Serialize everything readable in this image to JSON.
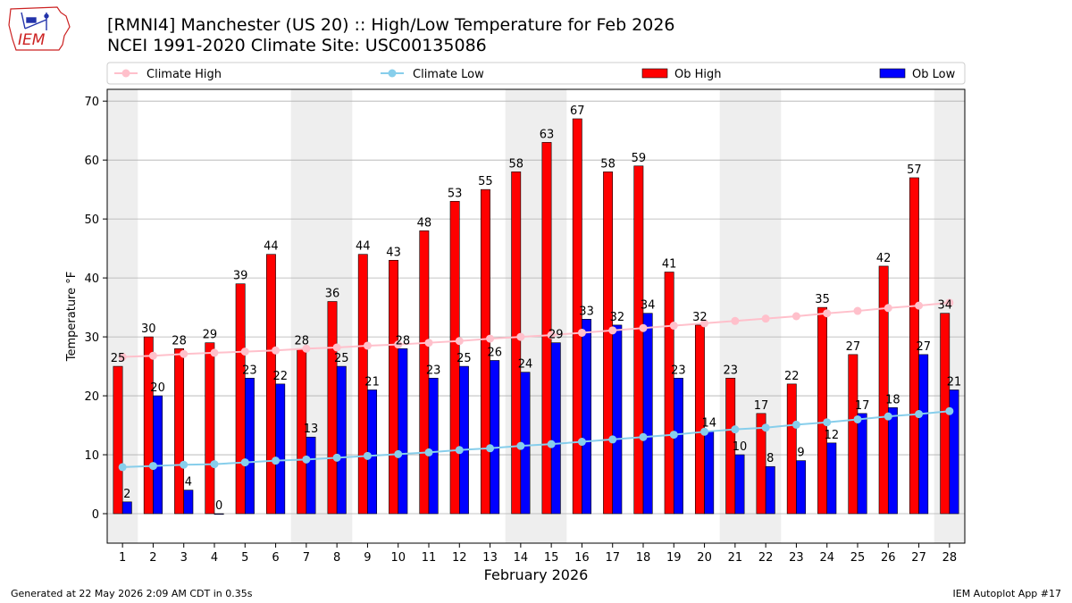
{
  "header": {
    "logo_text": "IEM",
    "title_line1": "[RMNI4] Manchester (US 20) :: High/Low Temperature for Feb 2026",
    "title_line2": "NCEI 1991-2020 Climate Site: USC00135086"
  },
  "footer": {
    "generated": "Generated at 22 May 2026 2:09 AM CDT in 0.35s",
    "app": "IEM Autoplot App #17"
  },
  "colors": {
    "ob_high": "#ff0000",
    "ob_low": "#0000ff",
    "climate_high": "#ffc0cb",
    "climate_low": "#87ceeb",
    "weekend_band": "#eeeeee",
    "grid": "#b0b0b0",
    "logo": "#cc2222"
  },
  "chart_data": {
    "type": "bar",
    "xlabel": "February 2026",
    "ylabel": "Temperature °F",
    "ylim": [
      -5,
      72
    ],
    "yticks": [
      0,
      10,
      20,
      30,
      40,
      50,
      60,
      70
    ],
    "grid": "horizontal",
    "legend_placement": "top",
    "categories": [
      1,
      2,
      3,
      4,
      5,
      6,
      7,
      8,
      9,
      10,
      11,
      12,
      13,
      14,
      15,
      16,
      17,
      18,
      19,
      20,
      21,
      22,
      23,
      24,
      25,
      26,
      27,
      28
    ],
    "shaded_days": [
      1,
      7,
      8,
      14,
      15,
      21,
      22,
      28
    ],
    "series": [
      {
        "name": "Climate High",
        "kind": "line",
        "color_key": "climate_high",
        "values": [
          26.6,
          26.8,
          27.1,
          27.3,
          27.5,
          27.7,
          28.0,
          28.2,
          28.5,
          28.7,
          29.0,
          29.3,
          29.7,
          30.0,
          30.3,
          30.7,
          31.1,
          31.5,
          31.9,
          32.3,
          32.7,
          33.1,
          33.5,
          34.0,
          34.4,
          34.9,
          35.3,
          35.8
        ]
      },
      {
        "name": "Climate Low",
        "kind": "line",
        "color_key": "climate_low",
        "values": [
          7.9,
          8.1,
          8.3,
          8.4,
          8.7,
          9.0,
          9.2,
          9.5,
          9.8,
          10.1,
          10.4,
          10.8,
          11.1,
          11.5,
          11.8,
          12.2,
          12.6,
          13.0,
          13.4,
          13.9,
          14.3,
          14.6,
          15.1,
          15.5,
          16.0,
          16.5,
          16.9,
          17.4
        ]
      },
      {
        "name": "Ob High",
        "kind": "bar",
        "color_key": "ob_high",
        "values": [
          25,
          30,
          28,
          29,
          39,
          44,
          28,
          36,
          44,
          43,
          48,
          53,
          55,
          58,
          63,
          67,
          58,
          59,
          41,
          32,
          23,
          17,
          22,
          35,
          27,
          42,
          57,
          34
        ]
      },
      {
        "name": "Ob Low",
        "kind": "bar",
        "color_key": "ob_low",
        "values": [
          2,
          20,
          4,
          0,
          23,
          22,
          13,
          25,
          21,
          28,
          23,
          25,
          26,
          24,
          29,
          33,
          32,
          34,
          23,
          14,
          10,
          8,
          9,
          12,
          17,
          18,
          27,
          21
        ]
      }
    ]
  }
}
